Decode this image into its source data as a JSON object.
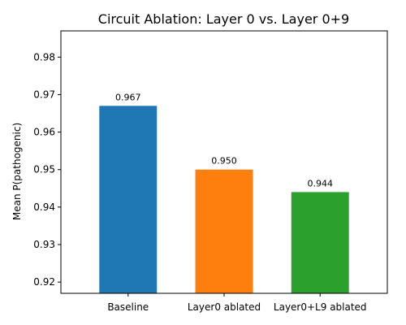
{
  "chart_data": {
    "type": "bar",
    "title": "Circuit Ablation: Layer 0 vs. Layer 0+9",
    "xlabel": "",
    "ylabel": "Mean P(pathogenic)",
    "categories": [
      "Baseline",
      "Layer0 ablated",
      "Layer0+L9 ablated"
    ],
    "values": [
      0.967,
      0.95,
      0.944
    ],
    "data_labels": [
      "0.967",
      "0.950",
      "0.944"
    ],
    "colors": [
      "#1f77b4",
      "#ff7f0e",
      "#2ca02c"
    ],
    "ylim": [
      0.917,
      0.987
    ],
    "yticks": [
      0.92,
      0.93,
      0.94,
      0.95,
      0.96,
      0.97,
      0.98
    ],
    "ytick_labels": [
      "0.92",
      "0.93",
      "0.94",
      "0.95",
      "0.96",
      "0.97",
      "0.98"
    ],
    "grid": false,
    "legend": "none"
  }
}
